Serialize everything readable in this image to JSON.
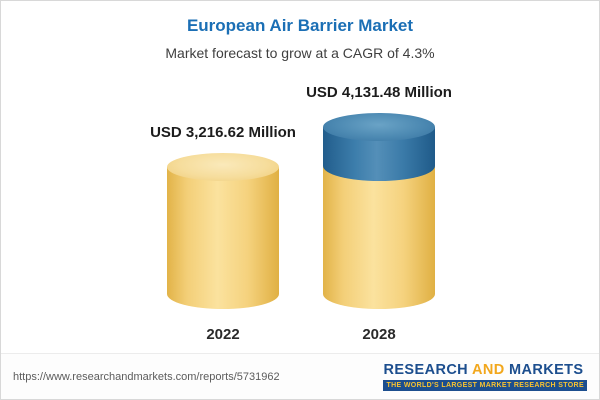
{
  "header": {
    "title": "European Air Barrier Market",
    "subtitle": "Market forecast to grow at a CAGR of 4.3%"
  },
  "chart": {
    "bars": [
      {
        "year": "2022",
        "value_label": "USD 3,216.62 Million"
      },
      {
        "year": "2028",
        "value_label": "USD 4,131.48 Million"
      }
    ]
  },
  "chart_data": {
    "type": "bar",
    "title": "European Air Barrier Market",
    "subtitle": "Market forecast to grow at a CAGR of 4.3%",
    "categories": [
      "2022",
      "2028"
    ],
    "values": [
      3216.62,
      4131.48
    ],
    "data_labels": [
      "USD 3,216.62 Million",
      "USD 4,131.48 Million"
    ],
    "unit": "USD Million",
    "cagr_pct": 4.3,
    "legend": false,
    "grid": false,
    "bar_style": "3d-cylinder",
    "growth_segment": "2028 bar top segment shown in blue representing growth over 2022"
  },
  "footer": {
    "report_url": "https://www.researchandmarkets.com/reports/5731962",
    "logo": {
      "word1": "RESEARCH",
      "word2": "AND",
      "word3": "MARKETS",
      "tagline": "THE WORLD'S LARGEST MARKET RESEARCH STORE"
    }
  },
  "colors": {
    "title_blue": "#1b6fb5",
    "bar_yellow": "#f5d27e",
    "bar_blue": "#3d7ea9",
    "logo_navy": "#1c4e8e",
    "logo_gold": "#f2a71c"
  }
}
